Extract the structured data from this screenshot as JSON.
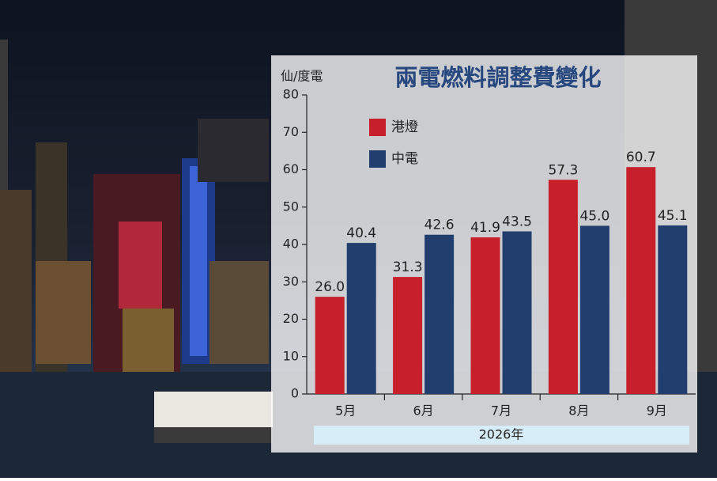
{
  "chart_data": {
    "type": "bar",
    "title": "兩電燃料調整費變化",
    "y_label": "仙/度電",
    "x_label": "2026年",
    "categories": [
      "5月",
      "6月",
      "7月",
      "8月",
      "9月"
    ],
    "series": [
      {
        "name": "港燈",
        "color": "#c8202a",
        "values": [
          26.0,
          31.3,
          41.9,
          57.3,
          60.7
        ],
        "value_labels": [
          "26.0",
          "31.3",
          "41.9",
          "57.3",
          "60.7"
        ]
      },
      {
        "name": "中電",
        "color": "#223e6e",
        "values": [
          40.4,
          42.6,
          43.5,
          45.0,
          45.1
        ],
        "value_labels": [
          "40.4",
          "42.6",
          "43.5",
          "45.0",
          "45.1"
        ]
      }
    ],
    "ylim": [
      0,
      80
    ],
    "yticks": [
      0,
      10,
      20,
      30,
      40,
      50,
      60,
      70,
      80
    ]
  }
}
